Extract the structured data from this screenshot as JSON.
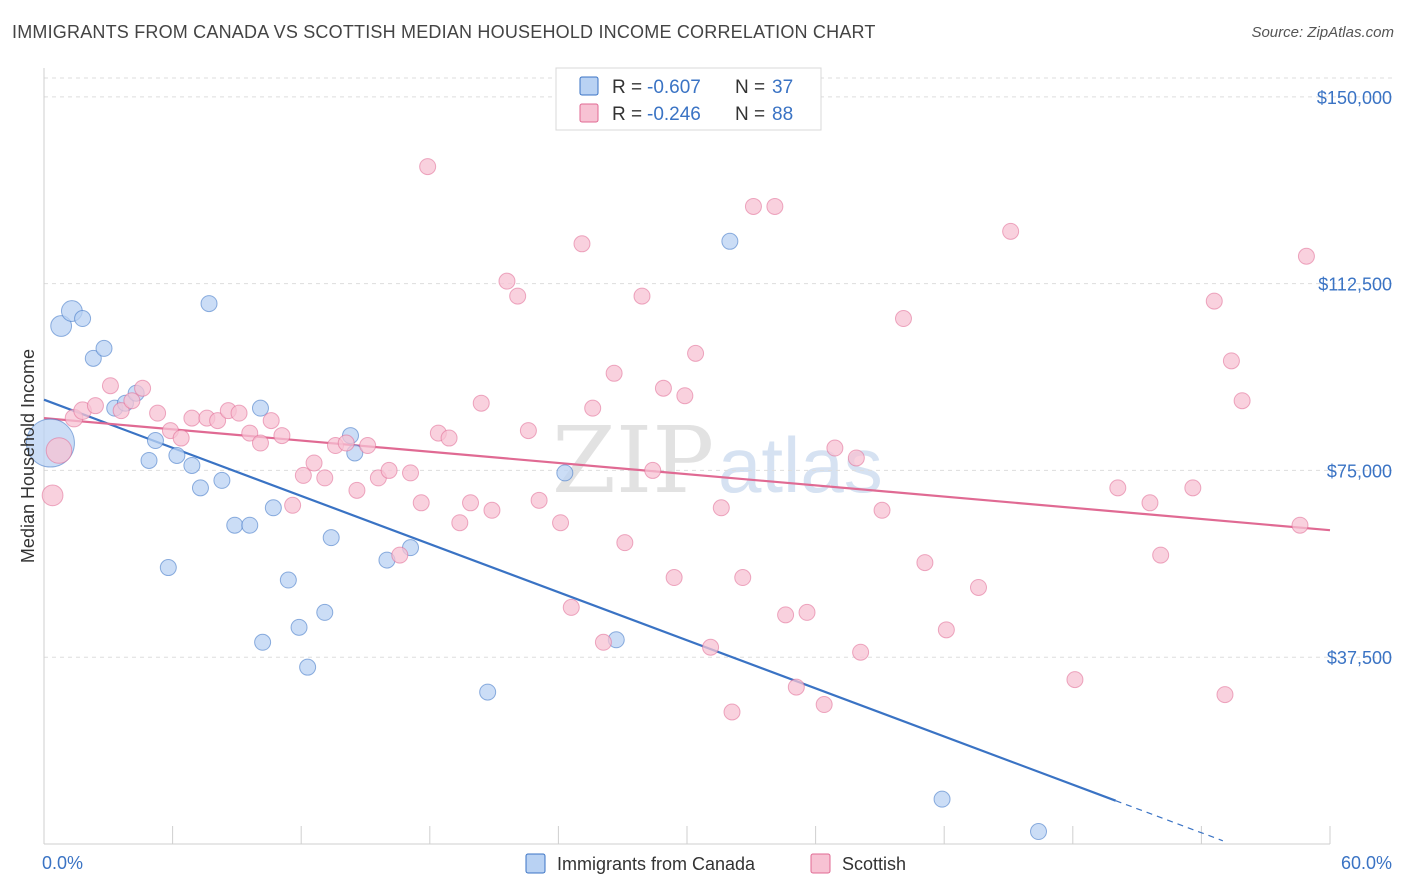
{
  "title": "IMMIGRANTS FROM CANADA VS SCOTTISH MEDIAN HOUSEHOLD INCOME CORRELATION CHART",
  "source": "Source: ZipAtlas.com",
  "watermark": {
    "zip": "ZIP",
    "atlas": "atlas"
  },
  "colors": {
    "blue": "#3a73c4",
    "pink": "#e06a93",
    "blue_fill": "#b9d2f3",
    "pink_fill": "#f7c2d3"
  },
  "legend": {
    "r_label": "R =",
    "n_label": "N =",
    "rows": [
      {
        "r": "-0.607",
        "n": "37"
      },
      {
        "r": "-0.246",
        "n": "88"
      }
    ]
  },
  "chart_data": {
    "type": "scatter",
    "title": "IMMIGRANTS FROM CANADA VS SCOTTISH MEDIAN HOUSEHOLD INCOME CORRELATION CHART",
    "xlabel": "",
    "ylabel": "Median Household Income",
    "xlim": [
      0,
      60
    ],
    "ylim": [
      0,
      157000
    ],
    "x_tick_labels": [
      "0.0%",
      "60.0%"
    ],
    "y_ticks": [
      37500,
      75000,
      112500,
      150000
    ],
    "y_tick_labels": [
      "$37,500",
      "$75,000",
      "$112,500",
      "$150,000"
    ],
    "grid": true,
    "legend_position": "top-center",
    "series": [
      {
        "name": "Immigrants from Canada",
        "color": "#3a73c4",
        "trend": {
          "x0": 0,
          "y0": 89200,
          "x1": 50,
          "y1": 8700,
          "dashed_to_x": 55
        },
        "points": [
          [
            0.3,
            80500,
            3
          ],
          [
            0.8,
            104000,
            1.3
          ],
          [
            1.3,
            107000,
            1.3
          ],
          [
            1.8,
            105500,
            1
          ],
          [
            2.3,
            97500,
            1
          ],
          [
            2.8,
            99500,
            1
          ],
          [
            3.3,
            87500,
            1
          ],
          [
            3.8,
            88500,
            1
          ],
          [
            4.3,
            90500,
            1
          ],
          [
            4.9,
            77000,
            1
          ],
          [
            5.2,
            81000,
            1
          ],
          [
            5.8,
            55500,
            1
          ],
          [
            6.2,
            78000,
            1
          ],
          [
            6.9,
            76000,
            1
          ],
          [
            7.3,
            71500,
            1
          ],
          [
            7.7,
            108500,
            1
          ],
          [
            8.3,
            73000,
            1
          ],
          [
            8.9,
            64000,
            1
          ],
          [
            9.6,
            64000,
            1
          ],
          [
            10.1,
            87500,
            1
          ],
          [
            10.2,
            40500,
            1
          ],
          [
            10.7,
            67500,
            1
          ],
          [
            11.4,
            53000,
            1
          ],
          [
            11.9,
            43500,
            1
          ],
          [
            12.3,
            35500,
            1
          ],
          [
            13.1,
            46500,
            1
          ],
          [
            13.4,
            61500,
            1
          ],
          [
            14.3,
            82000,
            1
          ],
          [
            14.5,
            78500,
            1
          ],
          [
            16.0,
            57000,
            1
          ],
          [
            17.1,
            59500,
            1
          ],
          [
            20.7,
            30500,
            1
          ],
          [
            24.3,
            74500,
            1
          ],
          [
            26.7,
            41000,
            1
          ],
          [
            32.0,
            121000,
            1
          ],
          [
            41.9,
            9000,
            1
          ],
          [
            46.4,
            2500,
            1
          ]
        ]
      },
      {
        "name": "Scottish",
        "color": "#e06a93",
        "trend": {
          "x0": 0,
          "y0": 85500,
          "x1": 60,
          "y1": 63000
        },
        "points": [
          [
            0.4,
            70000,
            1.3
          ],
          [
            0.7,
            79000,
            1.6
          ],
          [
            1.4,
            85500,
            1.1
          ],
          [
            1.8,
            87000,
            1.1
          ],
          [
            2.4,
            88000,
            1
          ],
          [
            3.1,
            92000,
            1
          ],
          [
            3.6,
            87000,
            1
          ],
          [
            4.1,
            89000,
            1
          ],
          [
            4.6,
            91500,
            1
          ],
          [
            5.3,
            86500,
            1
          ],
          [
            5.9,
            83000,
            1
          ],
          [
            6.4,
            81500,
            1
          ],
          [
            6.9,
            85500,
            1
          ],
          [
            7.6,
            85500,
            1
          ],
          [
            8.1,
            85000,
            1
          ],
          [
            8.6,
            87000,
            1
          ],
          [
            9.1,
            86500,
            1
          ],
          [
            9.6,
            82500,
            1
          ],
          [
            10.1,
            80500,
            1
          ],
          [
            10.6,
            85000,
            1
          ],
          [
            11.1,
            82000,
            1
          ],
          [
            11.6,
            68000,
            1
          ],
          [
            12.1,
            74000,
            1
          ],
          [
            12.6,
            76500,
            1
          ],
          [
            13.1,
            73500,
            1
          ],
          [
            13.6,
            80000,
            1
          ],
          [
            14.1,
            80500,
            1
          ],
          [
            14.6,
            71000,
            1
          ],
          [
            15.1,
            80000,
            1
          ],
          [
            15.6,
            73500,
            1
          ],
          [
            16.1,
            75000,
            1
          ],
          [
            16.6,
            58000,
            1
          ],
          [
            17.1,
            74500,
            1
          ],
          [
            17.6,
            68500,
            1
          ],
          [
            17.9,
            136000,
            1
          ],
          [
            18.4,
            82500,
            1
          ],
          [
            18.9,
            81500,
            1
          ],
          [
            19.4,
            64500,
            1
          ],
          [
            19.9,
            68500,
            1
          ],
          [
            20.4,
            88500,
            1
          ],
          [
            20.9,
            67000,
            1
          ],
          [
            21.6,
            113000,
            1
          ],
          [
            22.1,
            110000,
            1
          ],
          [
            22.6,
            83000,
            1
          ],
          [
            23.1,
            69000,
            1
          ],
          [
            24.1,
            64500,
            1
          ],
          [
            24.6,
            47500,
            1
          ],
          [
            25.1,
            120500,
            1
          ],
          [
            25.6,
            87500,
            1
          ],
          [
            26.1,
            40500,
            1
          ],
          [
            26.6,
            94500,
            1
          ],
          [
            27.1,
            60500,
            1
          ],
          [
            27.9,
            110000,
            1
          ],
          [
            28.4,
            75000,
            1
          ],
          [
            28.9,
            91500,
            1
          ],
          [
            29.4,
            53500,
            1
          ],
          [
            29.9,
            90000,
            1
          ],
          [
            30.4,
            98500,
            1
          ],
          [
            31.1,
            39500,
            1
          ],
          [
            31.6,
            67500,
            1
          ],
          [
            32.1,
            26500,
            1
          ],
          [
            32.6,
            53500,
            1
          ],
          [
            33.1,
            128000,
            1
          ],
          [
            34.1,
            128000,
            1
          ],
          [
            34.6,
            46000,
            1
          ],
          [
            35.1,
            31500,
            1
          ],
          [
            35.6,
            46500,
            1
          ],
          [
            36.4,
            28000,
            1
          ],
          [
            36.9,
            79500,
            1
          ],
          [
            37.9,
            77500,
            1
          ],
          [
            38.1,
            38500,
            1
          ],
          [
            39.1,
            67000,
            1
          ],
          [
            40.1,
            105500,
            1
          ],
          [
            41.1,
            56500,
            1
          ],
          [
            42.1,
            43000,
            1
          ],
          [
            43.6,
            51500,
            1
          ],
          [
            45.1,
            123000,
            1
          ],
          [
            48.1,
            33000,
            1
          ],
          [
            50.1,
            71500,
            1
          ],
          [
            51.6,
            68500,
            1
          ],
          [
            52.1,
            58000,
            1
          ],
          [
            53.6,
            71500,
            1
          ],
          [
            54.6,
            109000,
            1
          ],
          [
            55.1,
            30000,
            1
          ],
          [
            55.4,
            97000,
            1
          ],
          [
            55.9,
            89000,
            1
          ],
          [
            58.6,
            64000,
            1
          ],
          [
            58.9,
            118000,
            1
          ]
        ]
      }
    ]
  }
}
